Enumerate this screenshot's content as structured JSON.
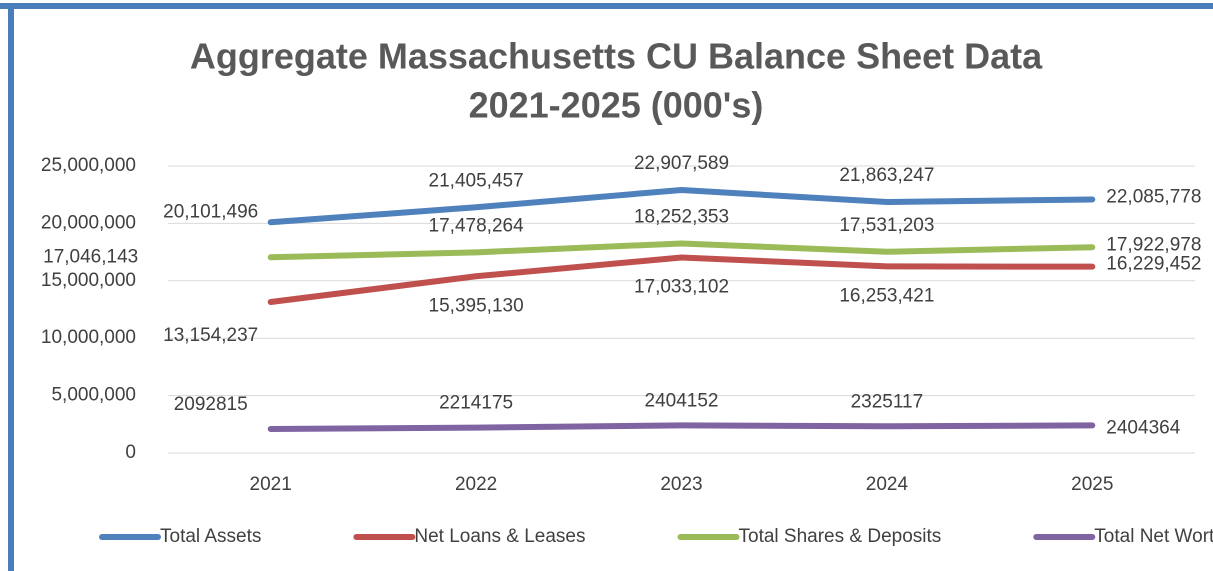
{
  "chart_data": {
    "type": "line",
    "title": [
      "Aggregate Massachusetts CU Balance Sheet Data",
      "2021-2025 (000's)"
    ],
    "categories": [
      "2021",
      "2022",
      "2023",
      "2024",
      "2025"
    ],
    "series": [
      {
        "name": "Total Assets",
        "color": "#4f81bd",
        "values": [
          20101496,
          21405457,
          22907589,
          21863247,
          22085778
        ],
        "value_labels": [
          "20,101,496",
          "21,405,457",
          "22,907,589",
          "21,863,247",
          "22,085,778"
        ]
      },
      {
        "name": "Net Loans & Leases",
        "color": "#c0504d",
        "values": [
          13154237,
          15395130,
          17033102,
          16253421,
          16229452
        ],
        "value_labels": [
          "13,154,237",
          "15,395,130",
          "17,033,102",
          "16,253,421",
          "16,229,452"
        ]
      },
      {
        "name": "Total Shares & Deposits",
        "color": "#9bbb59",
        "values": [
          17046143,
          17478264,
          18252353,
          17531203,
          17922978
        ],
        "value_labels": [
          "17,046,143",
          "17,478,264",
          "18,252,353",
          "17,531,203",
          "17,922,978"
        ]
      },
      {
        "name": "Total Net Worth",
        "color": "#8064a2",
        "values": [
          2092815,
          2214175,
          2404152,
          2325117,
          2404364
        ]
      }
    ],
    "ylim": [
      0,
      25000000
    ],
    "yticks": [
      0,
      {
        "value": 5000000,
        "label": "5,000,000"
      },
      {
        "value": 10000000,
        "label": "10,000,000"
      },
      {
        "value": 15000000,
        "label": "15,000,000"
      },
      {
        "value": 20000000,
        "label": "20,000,000"
      },
      {
        "value": 25000000,
        "label": "25,000,000"
      }
    ],
    "grid": true,
    "legend": "bottom"
  }
}
